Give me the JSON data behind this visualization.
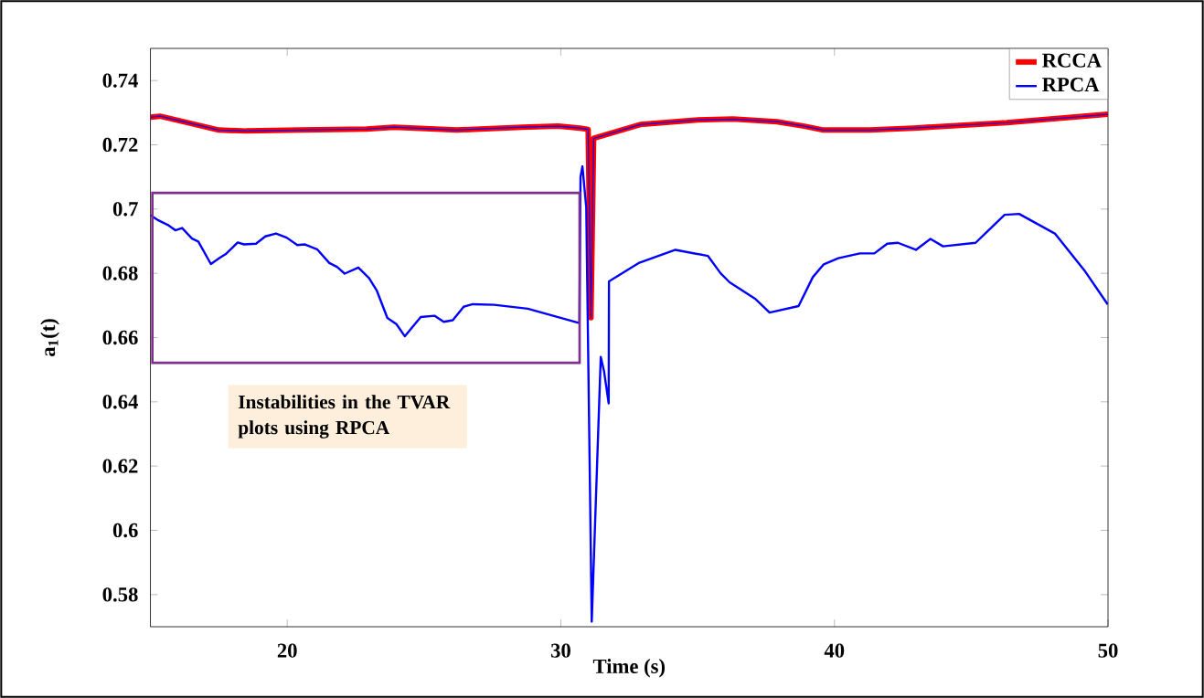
{
  "chart_data": {
    "type": "line",
    "xlabel": "Time (s)",
    "ylabel": "**a**$_{1}$**(t)**",
    "xlim": [
      15,
      50
    ],
    "ylim": [
      0.57,
      0.75
    ],
    "xticks": [
      20,
      30,
      40,
      50
    ],
    "yticks": [
      0.58,
      0.6,
      0.62,
      0.64,
      0.66,
      0.68,
      0.7,
      0.72,
      0.74
    ],
    "grid": false,
    "legend": "top right",
    "marker": "none",
    "line_style": "solid",
    "annotations": [
      "Instabilities in the TVAR plots using RPCA"
    ],
    "series": [
      {
        "name": "RCCA",
        "color": "#ff0000",
        "x": [
          15,
          15.35,
          16.2,
          17.5,
          18.5,
          20.5,
          22.9,
          23.9,
          26.2,
          28.6,
          29.9,
          30.7,
          31.0,
          31.1,
          31.2,
          32.9,
          34.9,
          36.3,
          37.9,
          38.9,
          39.6,
          41.3,
          42.9,
          46.3,
          50
        ],
        "values": [
          0.7286,
          0.7289,
          0.7272,
          0.7246,
          0.7243,
          0.7246,
          0.7249,
          0.7255,
          0.7246,
          0.7255,
          0.7258,
          0.7252,
          0.7248,
          0.6662,
          0.722,
          0.7263,
          0.7277,
          0.728,
          0.7272,
          0.7258,
          0.7246,
          0.7246,
          0.7252,
          0.7269,
          0.7295
        ]
      },
      {
        "color": "#0000ff",
        "x": [
          15,
          15.35,
          16.2,
          17.5,
          18.5,
          20.5,
          22.9,
          23.9,
          26.2,
          28.6,
          29.9,
          30.7,
          31.0,
          31.1,
          31.2,
          32.9,
          34.9,
          36.3,
          37.9,
          38.9,
          39.6,
          41.3,
          42.9,
          46.3,
          50
        ],
        "values": [
          0.7286,
          0.7289,
          0.7272,
          0.7246,
          0.7243,
          0.7246,
          0.7249,
          0.7255,
          0.7246,
          0.7255,
          0.7258,
          0.7252,
          0.7248,
          0.6662,
          0.722,
          0.7263,
          0.7277,
          0.728,
          0.7272,
          0.7258,
          0.7246,
          0.7246,
          0.7252,
          0.7269,
          0.7295
        ]
      },
      {
        "name": "RPCA",
        "color": "#0000ff",
        "x": [
          15,
          15.29,
          15.63,
          15.91,
          16.16,
          16.52,
          16.75,
          17.21,
          17.53,
          17.77,
          18.19,
          18.42,
          18.86,
          19.2,
          19.59,
          19.98,
          20.37,
          20.65,
          21.09,
          21.54,
          21.82,
          22.1,
          22.6,
          22.99,
          23.27,
          23.66,
          23.99,
          24.3,
          24.88,
          25.38,
          25.72,
          26.05,
          26.45,
          26.78,
          27.56,
          28.79,
          30.68,
          30.72,
          30.79,
          30.93,
          31.13,
          31.46,
          31.58,
          31.75,
          31.76,
          32.87,
          34.19,
          35.38,
          35.84,
          36.17,
          37.1,
          37.63,
          38.69,
          39.21,
          39.61,
          40.14,
          40.93,
          41.46,
          41.93,
          42.32,
          42.98,
          43.51,
          43.97,
          45.16,
          46.22,
          46.75,
          48.07,
          49.13,
          49.99
        ],
        "values": [
          0.6981,
          0.6965,
          0.6951,
          0.6934,
          0.6941,
          0.6908,
          0.6899,
          0.6829,
          0.6848,
          0.6861,
          0.6896,
          0.689,
          0.6892,
          0.6915,
          0.6924,
          0.6911,
          0.6888,
          0.689,
          0.6875,
          0.6832,
          0.682,
          0.6799,
          0.6818,
          0.6785,
          0.6747,
          0.6661,
          0.6642,
          0.6604,
          0.6664,
          0.6668,
          0.6649,
          0.6654,
          0.6696,
          0.6704,
          0.6702,
          0.669,
          0.6645,
          0.71,
          0.7133,
          0.7005,
          0.5716,
          0.654,
          0.6495,
          0.6395,
          0.6775,
          0.6833,
          0.6873,
          0.6854,
          0.68,
          0.6772,
          0.6721,
          0.6678,
          0.6698,
          0.6788,
          0.6828,
          0.6847,
          0.6862,
          0.6862,
          0.6892,
          0.6895,
          0.6873,
          0.6907,
          0.6884,
          0.6895,
          0.6982,
          0.6985,
          0.6923,
          0.681,
          0.6703
        ]
      }
    ]
  }
}
